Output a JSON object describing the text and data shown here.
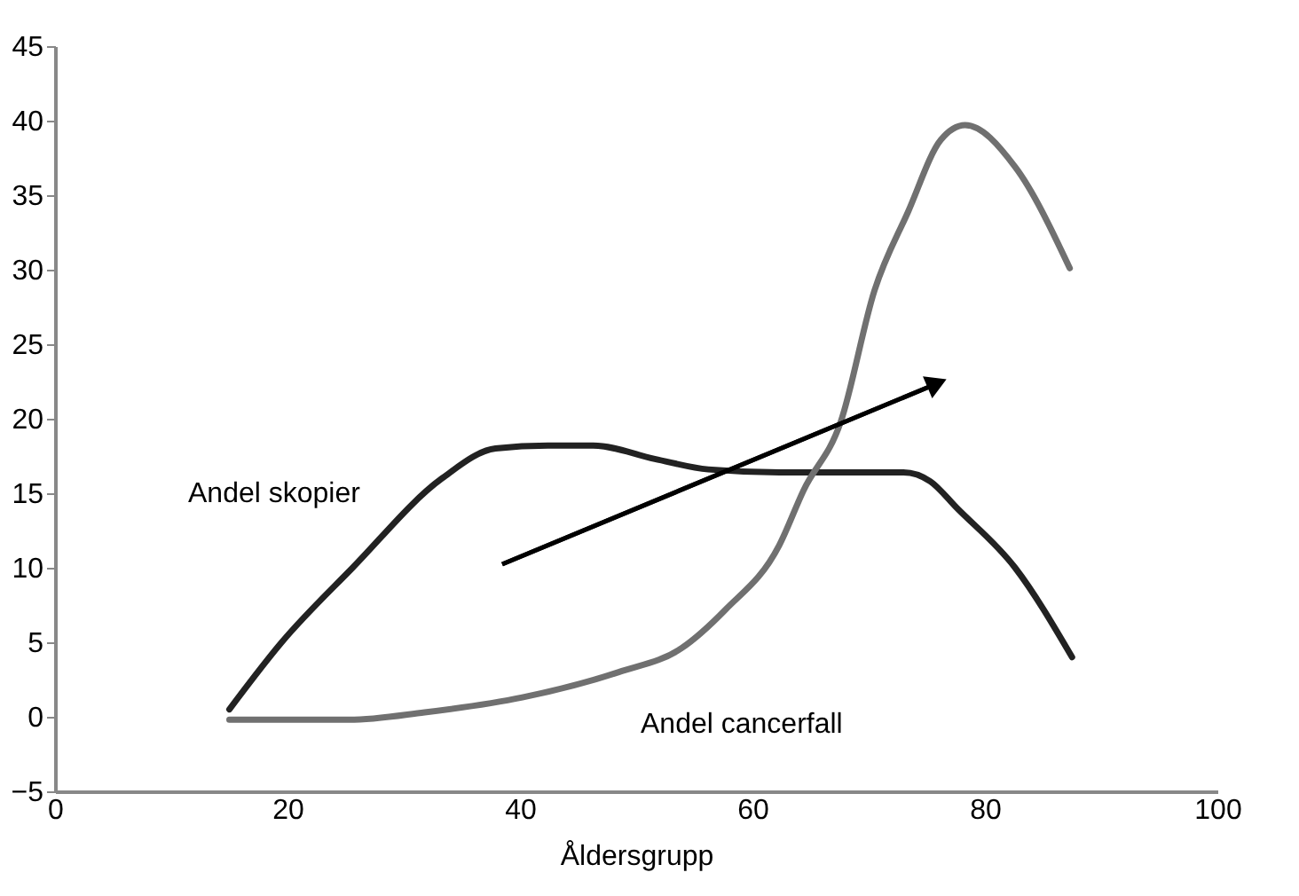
{
  "chart_data": {
    "type": "line",
    "xlabel": "Åldersgrupp",
    "xlim": [
      0,
      100
    ],
    "xticks": [
      0,
      20,
      40,
      60,
      80,
      100
    ],
    "ylim": [
      -5,
      45
    ],
    "yticks": [
      -5,
      0,
      5,
      10,
      15,
      20,
      25,
      30,
      35,
      40,
      45
    ],
    "grid": false,
    "marker": "none",
    "line_style": "solid",
    "series": [
      {
        "name": "Andel skopier",
        "color": "#222222",
        "x": [
          15,
          19.5,
          25.6,
          33.3,
          37.9,
          42.4,
          46.3,
          51.6,
          56.2,
          62.3,
          73,
          75.3,
          77.6,
          82.6,
          87.5
        ],
        "values": [
          0.5,
          5,
          10,
          16,
          18,
          18.2,
          18.2,
          17.3,
          16.6,
          16.4,
          16.4,
          15.8,
          14,
          10,
          4
        ]
      },
      {
        "name": "Andel cancerfall",
        "color": "#707070",
        "x": [
          15,
          25.3,
          31.8,
          40.2,
          48.5,
          53.9,
          57.7,
          62.3,
          64.4,
          67.6,
          70.5,
          73.4,
          76.2,
          78.3,
          82.6,
          87.3
        ],
        "values": [
          -0.2,
          -0.2,
          0.3,
          1.3,
          3,
          4.6,
          7.2,
          11.5,
          15.2,
          19.8,
          28.6,
          33.9,
          38.7,
          39.7,
          36.9,
          30.1
        ]
      }
    ]
  }
}
